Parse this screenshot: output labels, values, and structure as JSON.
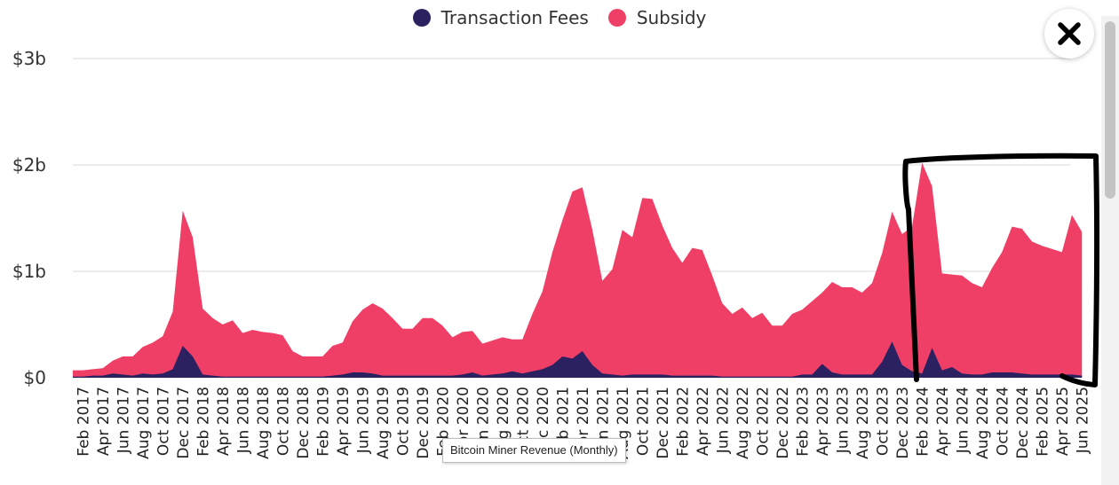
{
  "legend": [
    {
      "label": "Transaction Fees",
      "color": "#2b2160"
    },
    {
      "label": "Subsidy",
      "color": "#ef3f66"
    }
  ],
  "close_icon": "close-icon",
  "tooltip": "Bitcoin Miner Revenue (Monthly)",
  "chart_data": {
    "type": "area",
    "stacked": true,
    "grid": true,
    "y_ticks": [
      "$0",
      "$1b",
      "$2b",
      "$3b"
    ],
    "ylim": [
      0,
      3
    ],
    "y_unit": "billions USD",
    "x_tick_labels": [
      "Feb 2017",
      "Apr 2017",
      "Jun 2017",
      "Aug 2017",
      "Oct 2017",
      "Dec 2017",
      "Feb 2018",
      "Apr 2018",
      "Jun 2018",
      "Aug 2018",
      "Oct 2018",
      "Dec 2018",
      "Feb 2019",
      "Apr 2019",
      "Jun 2019",
      "Aug 2019",
      "Oct 2019",
      "Dec 2019",
      "Feb 2020",
      "Apr 2020",
      "Jun 2020",
      "Aug 2020",
      "Oct 2020",
      "Dec 2020",
      "Feb 2021",
      "Apr 2021",
      "Jun 2021",
      "Aug 2021",
      "Oct 2021",
      "Dec 2021",
      "Feb 2022",
      "Apr 2022",
      "Jun 2022",
      "Aug 2022",
      "Oct 2022",
      "Dec 2022",
      "Feb 2023",
      "Apr 2023",
      "Jun 2023",
      "Aug 2023",
      "Oct 2023",
      "Dec 2023",
      "Feb 2024",
      "Apr 2024",
      "Jun 2024",
      "Aug 2024",
      "Oct 2024",
      "Dec 2024",
      "Feb 2025",
      "Apr 2025",
      "Jun 2025"
    ],
    "x": [
      "Jan 2017",
      "Feb 2017",
      "Mar 2017",
      "Apr 2017",
      "May 2017",
      "Jun 2017",
      "Jul 2017",
      "Aug 2017",
      "Sep 2017",
      "Oct 2017",
      "Nov 2017",
      "Dec 2017",
      "Jan 2018",
      "Feb 2018",
      "Mar 2018",
      "Apr 2018",
      "May 2018",
      "Jun 2018",
      "Jul 2018",
      "Aug 2018",
      "Sep 2018",
      "Oct 2018",
      "Nov 2018",
      "Dec 2018",
      "Jan 2019",
      "Feb 2019",
      "Mar 2019",
      "Apr 2019",
      "May 2019",
      "Jun 2019",
      "Jul 2019",
      "Aug 2019",
      "Sep 2019",
      "Oct 2019",
      "Nov 2019",
      "Dec 2019",
      "Jan 2020",
      "Feb 2020",
      "Mar 2020",
      "Apr 2020",
      "May 2020",
      "Jun 2020",
      "Jul 2020",
      "Aug 2020",
      "Sep 2020",
      "Oct 2020",
      "Nov 2020",
      "Dec 2020",
      "Jan 2021",
      "Feb 2021",
      "Mar 2021",
      "Apr 2021",
      "May 2021",
      "Jun 2021",
      "Jul 2021",
      "Aug 2021",
      "Sep 2021",
      "Oct 2021",
      "Nov 2021",
      "Dec 2021",
      "Jan 2022",
      "Feb 2022",
      "Mar 2022",
      "Apr 2022",
      "May 2022",
      "Jun 2022",
      "Jul 2022",
      "Aug 2022",
      "Sep 2022",
      "Oct 2022",
      "Nov 2022",
      "Dec 2022",
      "Jan 2023",
      "Feb 2023",
      "Mar 2023",
      "Apr 2023",
      "May 2023",
      "Jun 2023",
      "Jul 2023",
      "Aug 2023",
      "Sep 2023",
      "Oct 2023",
      "Nov 2023",
      "Dec 2023",
      "Jan 2024",
      "Feb 2024",
      "Mar 2024",
      "Apr 2024",
      "May 2024",
      "Jun 2024",
      "Jul 2024",
      "Aug 2024",
      "Sep 2024",
      "Oct 2024",
      "Nov 2024",
      "Dec 2024",
      "Jan 2025",
      "Feb 2025",
      "Mar 2025",
      "Apr 2025",
      "May 2025",
      "Jun 2025"
    ],
    "series": [
      {
        "name": "Transaction Fees",
        "values": [
          0.01,
          0.01,
          0.02,
          0.02,
          0.04,
          0.03,
          0.02,
          0.04,
          0.03,
          0.04,
          0.08,
          0.3,
          0.2,
          0.03,
          0.02,
          0.01,
          0.01,
          0.01,
          0.01,
          0.01,
          0.01,
          0.01,
          0.01,
          0.01,
          0.01,
          0.01,
          0.02,
          0.03,
          0.05,
          0.05,
          0.04,
          0.02,
          0.02,
          0.02,
          0.02,
          0.02,
          0.02,
          0.02,
          0.02,
          0.03,
          0.05,
          0.02,
          0.03,
          0.04,
          0.06,
          0.04,
          0.06,
          0.08,
          0.12,
          0.2,
          0.18,
          0.25,
          0.12,
          0.04,
          0.03,
          0.02,
          0.03,
          0.03,
          0.03,
          0.03,
          0.02,
          0.02,
          0.02,
          0.02,
          0.02,
          0.01,
          0.01,
          0.01,
          0.01,
          0.01,
          0.01,
          0.01,
          0.01,
          0.03,
          0.03,
          0.13,
          0.05,
          0.03,
          0.03,
          0.03,
          0.03,
          0.15,
          0.34,
          0.12,
          0.06,
          0.04,
          0.28,
          0.07,
          0.1,
          0.04,
          0.03,
          0.03,
          0.05,
          0.05,
          0.05,
          0.04,
          0.03,
          0.03,
          0.03,
          0.03,
          0.03,
          0.02
        ]
      },
      {
        "name": "Subsidy",
        "values": [
          0.06,
          0.06,
          0.06,
          0.07,
          0.12,
          0.17,
          0.18,
          0.25,
          0.3,
          0.35,
          0.54,
          1.27,
          1.12,
          0.62,
          0.54,
          0.49,
          0.53,
          0.41,
          0.44,
          0.42,
          0.41,
          0.39,
          0.24,
          0.19,
          0.19,
          0.19,
          0.28,
          0.3,
          0.48,
          0.59,
          0.66,
          0.63,
          0.54,
          0.44,
          0.44,
          0.54,
          0.54,
          0.47,
          0.36,
          0.4,
          0.39,
          0.3,
          0.32,
          0.34,
          0.3,
          0.32,
          0.54,
          0.73,
          1.06,
          1.28,
          1.57,
          1.54,
          1.27,
          0.87,
          0.99,
          1.37,
          1.29,
          1.66,
          1.65,
          1.4,
          1.2,
          1.06,
          1.2,
          1.18,
          0.94,
          0.69,
          0.59,
          0.65,
          0.55,
          0.6,
          0.48,
          0.48,
          0.59,
          0.61,
          0.69,
          0.67,
          0.85,
          0.82,
          0.82,
          0.77,
          0.86,
          1.02,
          1.22,
          1.23,
          1.36,
          1.98,
          1.52,
          0.91,
          0.87,
          0.92,
          0.86,
          0.82,
          0.98,
          1.13,
          1.37,
          1.36,
          1.25,
          1.21,
          1.18,
          1.15,
          1.5,
          1.35
        ]
      }
    ]
  }
}
